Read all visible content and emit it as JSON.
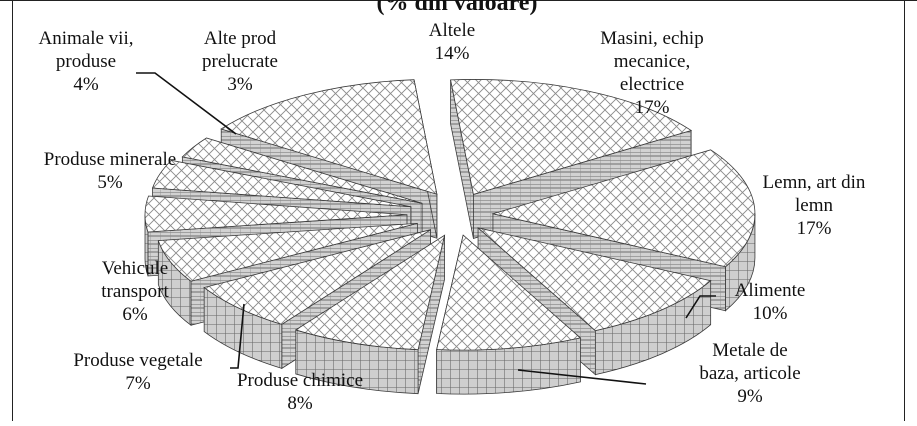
{
  "chart_data": {
    "type": "pie",
    "title": "(% din valoare)",
    "labels_on_chart": true,
    "legend": "none",
    "style": "3d-exploded",
    "slices": [
      {
        "label": "Masini, echip mecanice, electrice",
        "label_lines": [
          "Masini, echip",
          "mecanice,",
          "electrice"
        ],
        "value": 17,
        "value_text": "17%"
      },
      {
        "label": "Lemn, art din lemn",
        "label_lines": [
          "Lemn, art din",
          "lemn"
        ],
        "value": 17,
        "value_text": "17%"
      },
      {
        "label": "Alimente",
        "label_lines": [
          "Alimente"
        ],
        "value": 10,
        "value_text": "10%"
      },
      {
        "label": "Metale de baza, articole",
        "label_lines": [
          "Metale de",
          "baza, articole"
        ],
        "value": 9,
        "value_text": "9%"
      },
      {
        "label": "Produse chimice",
        "label_lines": [
          "Produse chimice"
        ],
        "value": 8,
        "value_text": "8%"
      },
      {
        "label": "Produse vegetale",
        "label_lines": [
          "Produse vegetale"
        ],
        "value": 7,
        "value_text": "7%"
      },
      {
        "label": "Vehicule transport",
        "label_lines": [
          "Vehicule",
          "transport"
        ],
        "value": 6,
        "value_text": "6%"
      },
      {
        "label": "Produse minerale",
        "label_lines": [
          "Produse minerale"
        ],
        "value": 5,
        "value_text": "5%"
      },
      {
        "label": "Animale vii, produse",
        "label_lines": [
          "Animale vii,",
          "produse"
        ],
        "value": 4,
        "value_text": "4%"
      },
      {
        "label": "Alte prod prelucrate",
        "label_lines": [
          "Alte prod",
          "prelucrate"
        ],
        "value": 3,
        "value_text": "3%"
      },
      {
        "label": "Altele",
        "label_lines": [
          "Altele"
        ],
        "value": 14,
        "value_text": "14%"
      }
    ]
  }
}
